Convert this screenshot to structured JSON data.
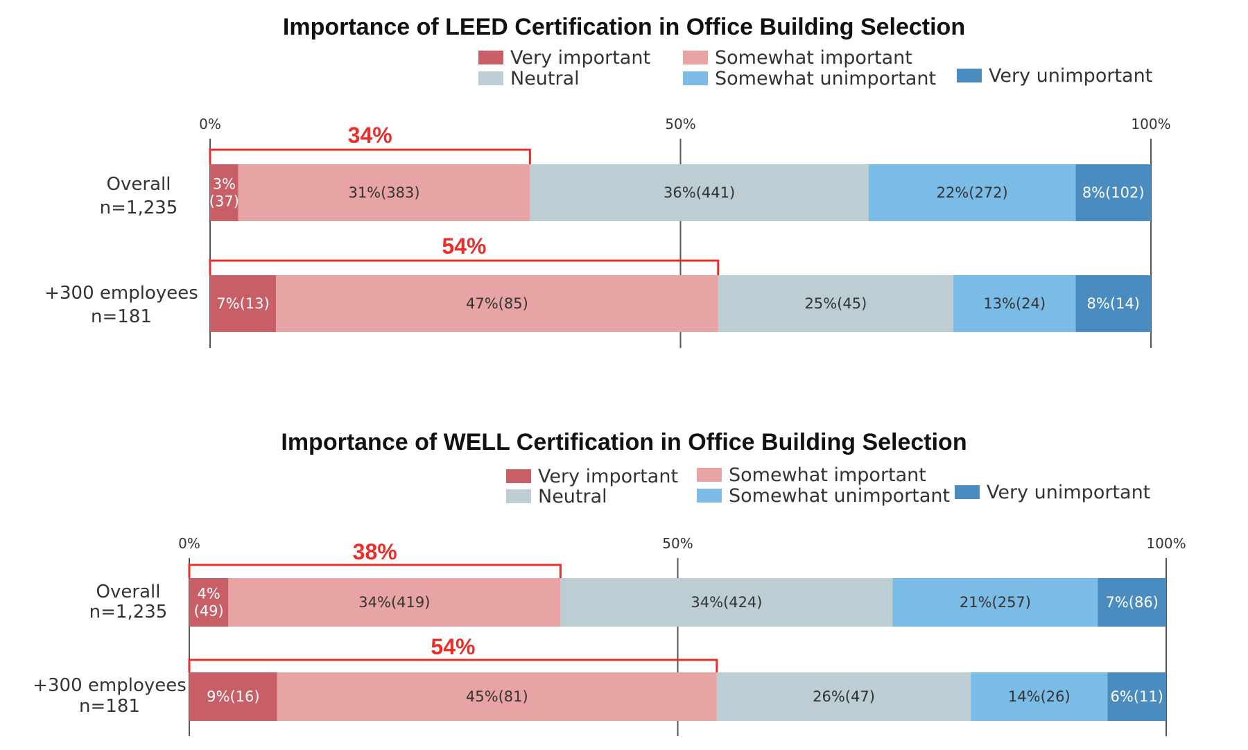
{
  "chart_data": [
    {
      "type": "bar",
      "orientation": "horizontal",
      "stacked": true,
      "title": "Importance of LEED Certification in Office Building Selection",
      "xlim": [
        0,
        100
      ],
      "ticks": [
        "0%",
        "50%",
        "100%"
      ],
      "legend": [
        {
          "name": "Very important",
          "color": "#c85f67"
        },
        {
          "name": "Somewhat important",
          "color": "#e8a4a4"
        },
        {
          "name": "Neutral",
          "color": "#bccdd3"
        },
        {
          "name": "Somewhat unimportant",
          "color": "#7bbce6"
        },
        {
          "name": "Very unimportant",
          "color": "#4a8cbf"
        }
      ],
      "legend_position": "top-right",
      "rows": [
        {
          "label": [
            "Overall",
            "n=1,235"
          ],
          "callout": "34%",
          "callout_value": 34,
          "segments": [
            {
              "value": 3,
              "label": [
                "3%",
                "(37)"
              ]
            },
            {
              "value": 31,
              "label": [
                "31%(383)"
              ]
            },
            {
              "value": 36,
              "label": [
                "36%(441)"
              ]
            },
            {
              "value": 22,
              "label": [
                "22%(272)"
              ]
            },
            {
              "value": 8,
              "label": [
                "8%(102)"
              ]
            }
          ]
        },
        {
          "label": [
            "+300 employees",
            "n=181"
          ],
          "callout": "54%",
          "callout_value": 54,
          "segments": [
            {
              "value": 7,
              "label": [
                "7%(13)"
              ]
            },
            {
              "value": 47,
              "label": [
                "47%(85)"
              ]
            },
            {
              "value": 25,
              "label": [
                "25%(45)"
              ]
            },
            {
              "value": 13,
              "label": [
                "13%(24)"
              ]
            },
            {
              "value": 8,
              "label": [
                "8%(14)"
              ]
            }
          ]
        }
      ]
    },
    {
      "type": "bar",
      "orientation": "horizontal",
      "stacked": true,
      "title": "Importance of WELL Certification in Office Building Selection",
      "xlim": [
        0,
        100
      ],
      "ticks": [
        "0%",
        "50%",
        "100%"
      ],
      "legend": [
        {
          "name": "Very important",
          "color": "#c85f67"
        },
        {
          "name": "Somewhat important",
          "color": "#e8a4a4"
        },
        {
          "name": "Neutral",
          "color": "#bccdd3"
        },
        {
          "name": "Somewhat unimportant",
          "color": "#7bbce6"
        },
        {
          "name": "Very unimportant",
          "color": "#4a8cbf"
        }
      ],
      "legend_position": "top-right",
      "rows": [
        {
          "label": [
            "Overall",
            "n=1,235"
          ],
          "callout": "38%",
          "callout_value": 38,
          "segments": [
            {
              "value": 4,
              "label": [
                "4%",
                "(49)"
              ]
            },
            {
              "value": 34,
              "label": [
                "34%(419)"
              ]
            },
            {
              "value": 34,
              "label": [
                "34%(424)"
              ]
            },
            {
              "value": 21,
              "label": [
                "21%(257)"
              ]
            },
            {
              "value": 7,
              "label": [
                "7%(86)"
              ]
            }
          ]
        },
        {
          "label": [
            "+300 employees",
            "n=181"
          ],
          "callout": "54%",
          "callout_value": 54,
          "segments": [
            {
              "value": 9,
              "label": [
                "9%(16)"
              ]
            },
            {
              "value": 45,
              "label": [
                "45%(81)"
              ]
            },
            {
              "value": 26,
              "label": [
                "26%(47)"
              ]
            },
            {
              "value": 14,
              "label": [
                "14%(26)"
              ]
            },
            {
              "value": 6,
              "label": [
                "6%(11)"
              ]
            }
          ]
        }
      ]
    }
  ],
  "colors": {
    "segment_text_dark": [
      "#ffffff",
      "#333333",
      "#333333",
      "#333333",
      "#ffffff"
    ],
    "callout": "#e8302a",
    "axis": "#555555"
  }
}
